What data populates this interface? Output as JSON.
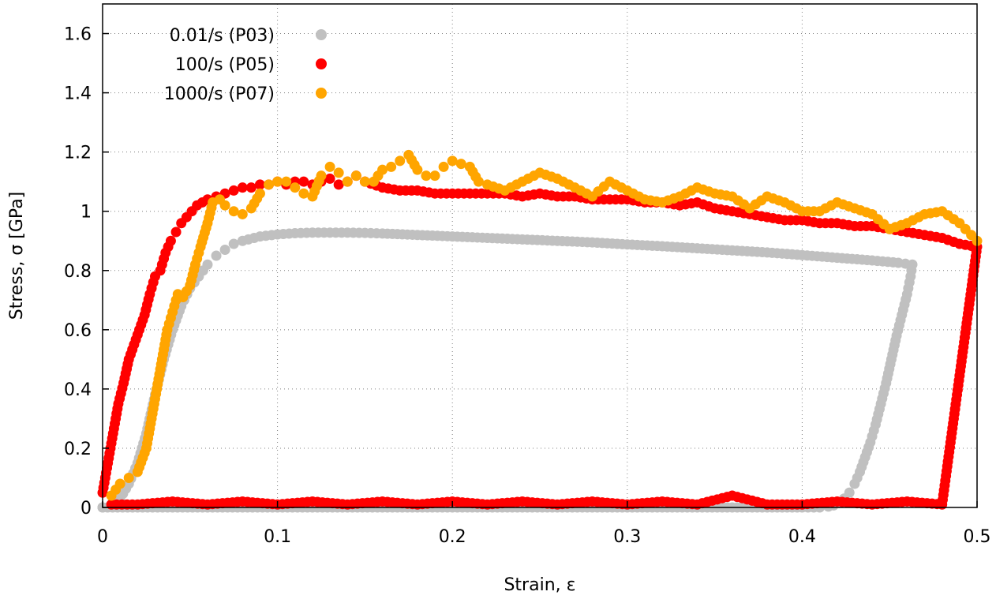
{
  "chart_data": {
    "type": "scatter",
    "title": "",
    "xlabel": "Strain, ε",
    "ylabel": "Stress, σ [GPa]",
    "xlim": [
      0,
      0.5
    ],
    "ylim": [
      0,
      1.7
    ],
    "grid": true,
    "legend_position": "top-left",
    "x_ticks": [
      0,
      0.1,
      0.2,
      0.3,
      0.4,
      0.5
    ],
    "x_tick_labels": [
      "0",
      "0.1",
      "0.2",
      "0.3",
      "0.4",
      "0.5"
    ],
    "y_ticks": [
      0,
      0.2,
      0.4,
      0.6,
      0.8,
      1.0,
      1.2,
      1.4,
      1.6
    ],
    "y_tick_labels": [
      "0",
      "0.2",
      "0.4",
      "0.6",
      "0.8",
      "1",
      "1.2",
      "1.4",
      "1.6"
    ],
    "series": [
      {
        "name": "0.01/s (P03)",
        "color": "#c0c0c0",
        "x": [
          0.0,
          0.005,
          0.01,
          0.015,
          0.02,
          0.025,
          0.03,
          0.035,
          0.04,
          0.045,
          0.05,
          0.055,
          0.06,
          0.065,
          0.07,
          0.075,
          0.08,
          0.09,
          0.1,
          0.11,
          0.12,
          0.13,
          0.14,
          0.15,
          0.16,
          0.18,
          0.2,
          0.22,
          0.24,
          0.26,
          0.28,
          0.3,
          0.32,
          0.34,
          0.36,
          0.38,
          0.4,
          0.42,
          0.44,
          0.455,
          0.463,
          0.462,
          0.46,
          0.457,
          0.454,
          0.451,
          0.448,
          0.445,
          0.442,
          0.439,
          0.436,
          0.433,
          0.43,
          0.427,
          0.424,
          0.421,
          0.418,
          0.415,
          0.41,
          0.4,
          0.38,
          0.36,
          0.34,
          0.32,
          0.3,
          0.28,
          0.26,
          0.24,
          0.22,
          0.2,
          0.18,
          0.16,
          0.14,
          0.12,
          0.1,
          0.08,
          0.06,
          0.04,
          0.02,
          0.0
        ],
        "y": [
          0.0,
          0.01,
          0.03,
          0.08,
          0.15,
          0.25,
          0.38,
          0.5,
          0.6,
          0.68,
          0.74,
          0.78,
          0.82,
          0.85,
          0.87,
          0.89,
          0.9,
          0.915,
          0.922,
          0.926,
          0.928,
          0.928,
          0.928,
          0.927,
          0.925,
          0.92,
          0.915,
          0.91,
          0.905,
          0.9,
          0.895,
          0.888,
          0.882,
          0.875,
          0.868,
          0.861,
          0.852,
          0.843,
          0.834,
          0.826,
          0.82,
          0.78,
          0.72,
          0.65,
          0.58,
          0.5,
          0.42,
          0.35,
          0.28,
          0.22,
          0.17,
          0.12,
          0.08,
          0.05,
          0.03,
          0.015,
          0.007,
          0.003,
          0.0,
          0.0,
          0.0,
          0.0,
          0.0,
          0.0,
          0.0,
          0.0,
          0.0,
          0.0,
          0.0,
          0.0,
          0.0,
          0.0,
          0.0,
          0.0,
          0.0,
          0.0,
          0.0,
          0.0,
          0.0,
          0.0
        ]
      },
      {
        "name": "100/s (P05)",
        "color": "#ff0000",
        "x": [
          0.0,
          0.003,
          0.006,
          0.009,
          0.012,
          0.015,
          0.018,
          0.021,
          0.024,
          0.027,
          0.03,
          0.033,
          0.036,
          0.039,
          0.042,
          0.045,
          0.048,
          0.051,
          0.054,
          0.057,
          0.06,
          0.065,
          0.07,
          0.075,
          0.08,
          0.085,
          0.09,
          0.095,
          0.1,
          0.105,
          0.11,
          0.115,
          0.12,
          0.125,
          0.13,
          0.135,
          0.14,
          0.145,
          0.15,
          0.16,
          0.17,
          0.18,
          0.19,
          0.2,
          0.21,
          0.22,
          0.23,
          0.24,
          0.25,
          0.26,
          0.27,
          0.28,
          0.29,
          0.3,
          0.31,
          0.32,
          0.33,
          0.34,
          0.35,
          0.36,
          0.37,
          0.38,
          0.39,
          0.4,
          0.41,
          0.42,
          0.43,
          0.44,
          0.45,
          0.46,
          0.47,
          0.48,
          0.49,
          0.5,
          0.48,
          0.46,
          0.44,
          0.42,
          0.4,
          0.38,
          0.36,
          0.34,
          0.32,
          0.3,
          0.28,
          0.26,
          0.24,
          0.22,
          0.2,
          0.18,
          0.16,
          0.14,
          0.12,
          0.1,
          0.08,
          0.06,
          0.04,
          0.02,
          0.005
        ],
        "y": [
          0.05,
          0.15,
          0.25,
          0.35,
          0.42,
          0.5,
          0.55,
          0.6,
          0.65,
          0.72,
          0.78,
          0.8,
          0.86,
          0.9,
          0.93,
          0.96,
          0.98,
          1.0,
          1.02,
          1.03,
          1.04,
          1.05,
          1.06,
          1.07,
          1.08,
          1.08,
          1.09,
          1.09,
          1.1,
          1.09,
          1.1,
          1.1,
          1.09,
          1.1,
          1.11,
          1.09,
          1.1,
          1.12,
          1.1,
          1.08,
          1.07,
          1.07,
          1.06,
          1.06,
          1.06,
          1.06,
          1.06,
          1.05,
          1.06,
          1.05,
          1.05,
          1.04,
          1.04,
          1.04,
          1.03,
          1.03,
          1.02,
          1.03,
          1.01,
          1.0,
          0.99,
          0.98,
          0.97,
          0.97,
          0.96,
          0.96,
          0.95,
          0.95,
          0.94,
          0.93,
          0.92,
          0.91,
          0.89,
          0.88,
          0.01,
          0.02,
          0.01,
          0.02,
          0.01,
          0.01,
          0.04,
          0.01,
          0.02,
          0.01,
          0.02,
          0.01,
          0.02,
          0.01,
          0.02,
          0.01,
          0.02,
          0.01,
          0.02,
          0.01,
          0.02,
          0.01,
          0.02,
          0.01,
          0.01
        ]
      },
      {
        "name": "1000/s (P07)",
        "color": "#ffa500",
        "x": [
          0.005,
          0.01,
          0.015,
          0.02,
          0.025,
          0.028,
          0.031,
          0.034,
          0.037,
          0.04,
          0.043,
          0.046,
          0.05,
          0.053,
          0.056,
          0.06,
          0.063,
          0.067,
          0.07,
          0.075,
          0.08,
          0.085,
          0.09,
          0.095,
          0.1,
          0.105,
          0.11,
          0.115,
          0.12,
          0.125,
          0.13,
          0.135,
          0.14,
          0.145,
          0.15,
          0.155,
          0.16,
          0.165,
          0.17,
          0.175,
          0.18,
          0.185,
          0.19,
          0.195,
          0.2,
          0.205,
          0.21,
          0.215,
          0.22,
          0.23,
          0.24,
          0.25,
          0.26,
          0.27,
          0.28,
          0.29,
          0.3,
          0.31,
          0.32,
          0.33,
          0.34,
          0.35,
          0.36,
          0.37,
          0.38,
          0.39,
          0.4,
          0.41,
          0.42,
          0.43,
          0.44,
          0.45,
          0.46,
          0.47,
          0.48,
          0.49,
          0.5
        ],
        "y": [
          0.04,
          0.08,
          0.1,
          0.12,
          0.2,
          0.3,
          0.4,
          0.5,
          0.6,
          0.66,
          0.72,
          0.71,
          0.75,
          0.82,
          0.88,
          0.96,
          1.03,
          1.04,
          1.02,
          1.0,
          0.99,
          1.01,
          1.06,
          1.09,
          1.1,
          1.1,
          1.08,
          1.06,
          1.05,
          1.12,
          1.15,
          1.13,
          1.1,
          1.12,
          1.1,
          1.1,
          1.14,
          1.15,
          1.17,
          1.19,
          1.14,
          1.12,
          1.12,
          1.15,
          1.17,
          1.16,
          1.15,
          1.1,
          1.09,
          1.07,
          1.1,
          1.13,
          1.11,
          1.08,
          1.05,
          1.1,
          1.07,
          1.04,
          1.03,
          1.05,
          1.08,
          1.06,
          1.05,
          1.01,
          1.05,
          1.03,
          1.0,
          1.0,
          1.03,
          1.01,
          0.99,
          0.94,
          0.96,
          0.99,
          1.0,
          0.96,
          0.9
        ]
      }
    ]
  }
}
